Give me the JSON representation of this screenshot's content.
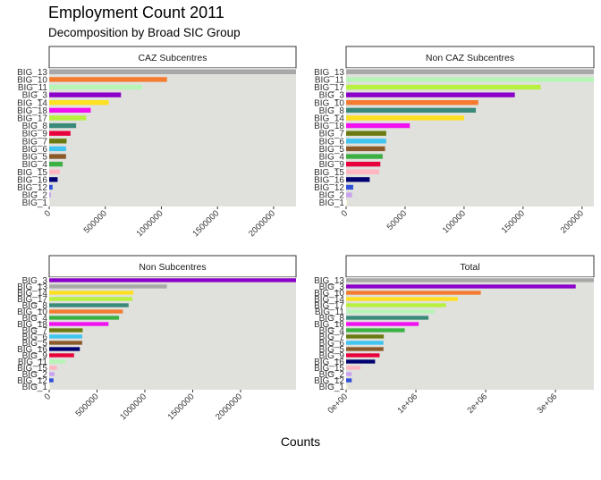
{
  "title": "Employment Count 2011",
  "subtitle": "Decomposition by Broad SIC Group",
  "xlabel": "Counts",
  "colors": {
    "BIG_1": "#FFF5D5",
    "BIG_2": "#C8A2F0",
    "BIG_3": "#8B00C9",
    "BIG_4": "#3CB043",
    "BIG_5": "#8B5A2B",
    "BIG_6": "#40C4F0",
    "BIG_7": "#6B7A10",
    "BIG_8": "#3A8A7A",
    "BIG_9": "#E8003C",
    "BIG_10": "#F47B30",
    "BIG_11": "#B7F5B7",
    "BIG_12": "#3050D8",
    "BIG_13": "#A8A8A8",
    "BIG_14": "#FFE020",
    "BIG_15": "#FFB6C1",
    "BIG_16": "#000070",
    "BIG_17": "#B8F040",
    "BIG_18": "#F010F0"
  },
  "chart_data": [
    {
      "type": "bar",
      "orientation": "horizontal",
      "title": "CAZ Subcentres",
      "categories": [
        "BIG_13",
        "BIG_10",
        "BIG_11",
        "BIG_3",
        "BIG_14",
        "BIG_18",
        "BIG_17",
        "BIG_8",
        "BIG_9",
        "BIG_7",
        "BIG_6",
        "BIG_5",
        "BIG_4",
        "BIG_15",
        "BIG_16",
        "BIG_12",
        "BIG_2",
        "BIG_1"
      ],
      "values": [
        2200000,
        1050000,
        830000,
        640000,
        530000,
        370000,
        330000,
        240000,
        190000,
        155000,
        150000,
        150000,
        120000,
        95000,
        75000,
        30000,
        15000,
        5000
      ],
      "xlim": [
        0,
        2200000
      ],
      "ticks": [
        0,
        500000,
        1000000,
        1500000,
        2000000
      ],
      "tick_labels": [
        "0",
        "500000",
        "1000000",
        "1500000",
        "2000000"
      ]
    },
    {
      "type": "bar",
      "orientation": "horizontal",
      "title": "Non CAZ Subcentres",
      "categories": [
        "BIG_13",
        "BIG_11",
        "BIG_17",
        "BIG_3",
        "BIG_10",
        "BIG_8",
        "BIG_14",
        "BIG_18",
        "BIG_7",
        "BIG_6",
        "BIG_5",
        "BIG_4",
        "BIG_9",
        "BIG_15",
        "BIG_16",
        "BIG_12",
        "BIG_2",
        "BIG_1"
      ],
      "values": [
        210000,
        210000,
        165000,
        143000,
        112000,
        110000,
        100000,
        54000,
        34000,
        34000,
        33000,
        31000,
        29000,
        28000,
        20000,
        6000,
        5000,
        1000
      ],
      "xlim": [
        0,
        210000
      ],
      "ticks": [
        0,
        50000,
        100000,
        150000,
        200000
      ],
      "tick_labels": [
        "0",
        "50000",
        "100000",
        "150000",
        "200000"
      ]
    },
    {
      "type": "bar",
      "orientation": "horizontal",
      "title": "Non Subcentres",
      "categories": [
        "BIG_3",
        "BIG_13",
        "BIG_14",
        "BIG_17",
        "BIG_8",
        "BIG_10",
        "BIG_4",
        "BIG_18",
        "BIG_7",
        "BIG_6",
        "BIG_5",
        "BIG_16",
        "BIG_9",
        "BIG_11",
        "BIG_15",
        "BIG_2",
        "BIG_12",
        "BIG_1"
      ],
      "values": [
        2580000,
        1230000,
        880000,
        870000,
        830000,
        770000,
        730000,
        620000,
        350000,
        345000,
        345000,
        320000,
        260000,
        170000,
        80000,
        55000,
        45000,
        10000
      ],
      "xlim": [
        0,
        2580000
      ],
      "ticks": [
        0,
        500000,
        1000000,
        1500000,
        2000000
      ],
      "tick_labels": [
        "0",
        "500000",
        "1000000",
        "1500000",
        "2000000"
      ]
    },
    {
      "type": "bar",
      "orientation": "horizontal",
      "title": "Total",
      "categories": [
        "BIG_13",
        "BIG_3",
        "BIG_10",
        "BIG_14",
        "BIG_17",
        "BIG_11",
        "BIG_8",
        "BIG_18",
        "BIG_4",
        "BIG_7",
        "BIG_6",
        "BIG_5",
        "BIG_9",
        "BIG_16",
        "BIG_15",
        "BIG_2",
        "BIG_12",
        "BIG_1"
      ],
      "values": [
        3550000,
        3290000,
        1930000,
        1600000,
        1430000,
        1270000,
        1180000,
        1040000,
        840000,
        540000,
        535000,
        535000,
        480000,
        415000,
        205000,
        80000,
        80000,
        20000
      ],
      "xlim": [
        0,
        3550000
      ],
      "ticks": [
        0,
        1000000,
        2000000,
        3000000
      ],
      "tick_labels": [
        "0e+00",
        "1e+06",
        "2e+06",
        "3e+06"
      ]
    }
  ]
}
